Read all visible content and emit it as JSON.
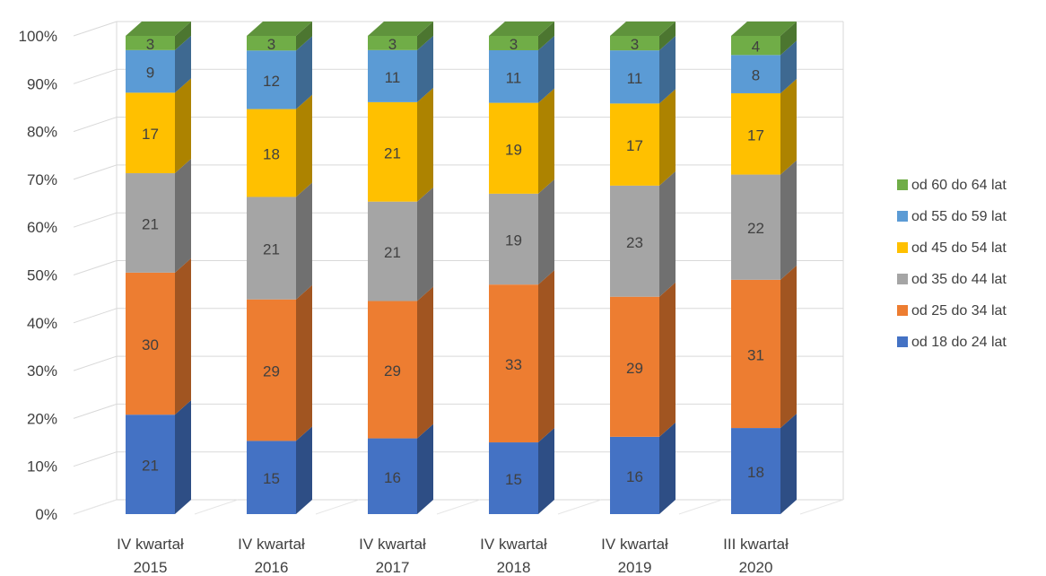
{
  "chart_data": {
    "type": "bar",
    "stacked": true,
    "percent_stacked": true,
    "three_d": true,
    "categories": [
      [
        "IV kwartał",
        "2015"
      ],
      [
        "IV kwartał",
        "2016"
      ],
      [
        "IV kwartał",
        "2017"
      ],
      [
        "IV kwartał",
        "2018"
      ],
      [
        "IV kwartał",
        "2019"
      ],
      [
        "III kwartał",
        "2020"
      ]
    ],
    "series": [
      {
        "name": "od 18 do 24 lat",
        "color": "#4472C4",
        "values": [
          21,
          15,
          16,
          15,
          16,
          18
        ]
      },
      {
        "name": "od 25 do 34 lat",
        "color": "#ED7D31",
        "values": [
          30,
          29,
          29,
          33,
          29,
          31
        ]
      },
      {
        "name": "od 35 do 44 lat",
        "color": "#A5A5A5",
        "values": [
          21,
          21,
          21,
          19,
          23,
          22
        ]
      },
      {
        "name": "od 45 do 54 lat",
        "color": "#FFC000",
        "values": [
          17,
          18,
          21,
          19,
          17,
          17
        ]
      },
      {
        "name": "od 55 do 59 lat",
        "color": "#5B9BD5",
        "values": [
          9,
          12,
          11,
          11,
          11,
          8
        ]
      },
      {
        "name": "od 60 do 64 lat",
        "color": "#70AD47",
        "values": [
          3,
          3,
          3,
          3,
          3,
          4
        ]
      }
    ],
    "ylim": [
      0,
      100
    ],
    "yticks": [
      "0%",
      "10%",
      "20%",
      "30%",
      "40%",
      "50%",
      "60%",
      "70%",
      "80%",
      "90%",
      "100%"
    ],
    "grid": true,
    "legend_position": "right",
    "legend_order": "reversed"
  }
}
